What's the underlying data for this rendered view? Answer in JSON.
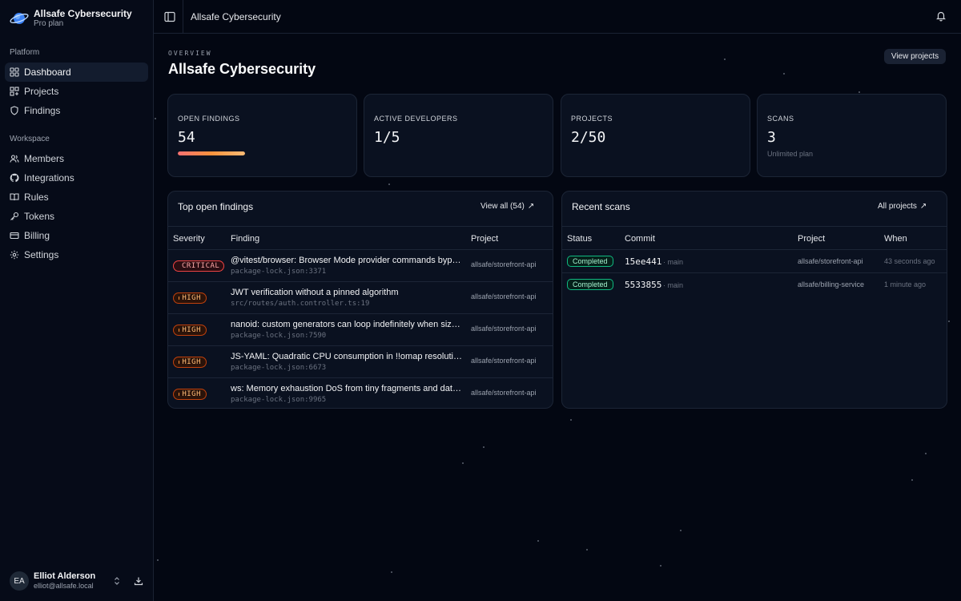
{
  "sidebar": {
    "brand": {
      "name": "Allsafe Cybersecurity",
      "plan": "Pro plan",
      "icon": "planet-logo-icon"
    },
    "platform_label": "Platform",
    "platform_items": [
      {
        "label": "Dashboard",
        "icon": "dashboard-icon",
        "active": true
      },
      {
        "label": "Projects",
        "icon": "projects-icon"
      },
      {
        "label": "Findings",
        "icon": "shield-icon"
      }
    ],
    "workspace_label": "Workspace",
    "workspace_items": [
      {
        "label": "Members",
        "icon": "users-icon"
      },
      {
        "label": "Integrations",
        "icon": "github-icon"
      },
      {
        "label": "Rules",
        "icon": "book-icon"
      },
      {
        "label": "Tokens",
        "icon": "key-icon"
      },
      {
        "label": "Billing",
        "icon": "credit-card-icon"
      },
      {
        "label": "Settings",
        "icon": "gear-icon"
      }
    ],
    "user": {
      "initials": "EA",
      "name": "Elliot Alderson",
      "email": "elliot@allsafe.local"
    }
  },
  "topbar": {
    "title": "Allsafe Cybersecurity"
  },
  "header": {
    "eyebrow": "OVERVIEW",
    "title": "Allsafe Cybersecurity",
    "view_projects": "View projects"
  },
  "stats": [
    {
      "label": "OPEN FINDINGS",
      "value": "54",
      "severity_fill": 1.0
    },
    {
      "label": "ACTIVE DEVELOPERS",
      "value": "1/5"
    },
    {
      "label": "PROJECTS",
      "value": "2/50"
    },
    {
      "label": "SCANS",
      "value": "3",
      "sub": "Unlimited plan"
    }
  ],
  "findings": {
    "title": "Top open findings",
    "link": "View all (54)",
    "columns": [
      "Severity",
      "Finding",
      "Project"
    ],
    "rows": [
      {
        "severity": "CRITICAL",
        "level": "critical",
        "title": "@vitest/browser: Browser Mode provider commands bypass",
        "path": "package-lock.json:3371",
        "project": "allsafe/storefront-api"
      },
      {
        "severity": "HIGH",
        "level": "high",
        "title": "JWT verification without a pinned algorithm",
        "path": "src/routes/auth.controller.ts:19",
        "project": "allsafe/storefront-api"
      },
      {
        "severity": "HIGH",
        "level": "high",
        "title": "nanoid: custom generators can loop indefinitely when size is",
        "path": "package-lock.json:7590",
        "project": "allsafe/storefront-api"
      },
      {
        "severity": "HIGH",
        "level": "high",
        "title": "JS-YAML: Quadratic CPU consumption in !!omap resolution",
        "path": "package-lock.json:6673",
        "project": "allsafe/storefront-api"
      },
      {
        "severity": "HIGH",
        "level": "high",
        "title": "ws: Memory exhaustion DoS from tiny fragments and data frames",
        "path": "package-lock.json:9965",
        "project": "allsafe/storefront-api"
      }
    ]
  },
  "scans": {
    "title": "Recent scans",
    "link": "All projects",
    "columns": [
      "Status",
      "Commit",
      "Project",
      "When"
    ],
    "rows": [
      {
        "status": "Completed",
        "commit": "15ee441",
        "branch": "main",
        "project": "allsafe/storefront-api",
        "when": "43 seconds ago"
      },
      {
        "status": "Completed",
        "commit": "5533855",
        "branch": "main",
        "project": "allsafe/billing-service",
        "when": "1 minute ago"
      }
    ]
  }
}
